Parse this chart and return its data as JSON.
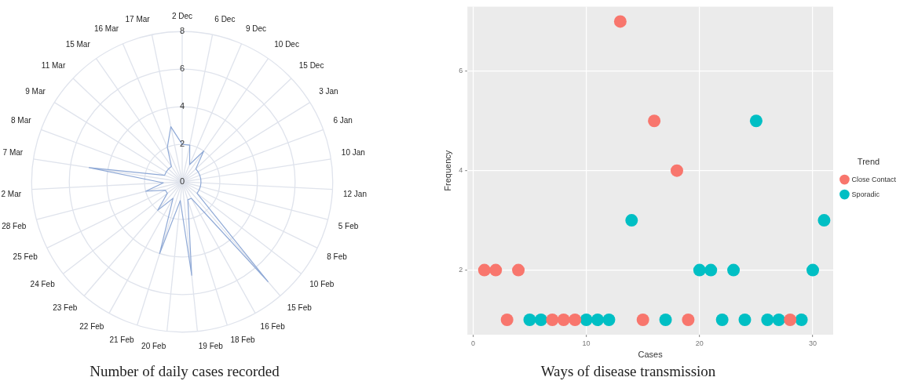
{
  "chart_data": [
    {
      "type": "radar",
      "title": "Number of daily cases recorded",
      "categories": [
        "2 Dec",
        "6 Dec",
        "9 Dec",
        "10 Dec",
        "15 Dec",
        "3 Jan",
        "6 Jan",
        "10 Jan",
        "12 Jan",
        "5 Feb",
        "8 Feb",
        "10 Feb",
        "15 Feb",
        "16 Feb",
        "18 Feb",
        "19 Feb",
        "20 Feb",
        "21 Feb",
        "22 Feb",
        "23 Feb",
        "24 Feb",
        "25 Feb",
        "28 Feb",
        "2 Mar",
        "7 Mar",
        "8 Mar",
        "9 Mar",
        "11 Mar",
        "15 Mar",
        "16 Mar",
        "17 Mar"
      ],
      "series": [
        {
          "color": "#8fa9d6",
          "values": [
            2,
            2,
            1,
            2,
            1,
            1,
            1,
            1,
            1,
            1,
            1,
            1,
            7,
            1,
            1,
            5,
            1,
            4,
            1,
            2,
            1,
            1,
            2,
            1,
            5,
            1,
            1,
            1,
            1,
            2,
            3
          ]
        }
      ],
      "ylim": [
        0,
        8
      ],
      "yticks": [
        0,
        2,
        4,
        6,
        8
      ],
      "grid": true,
      "marker": "none"
    },
    {
      "type": "scatter",
      "title": "Ways of disease transmission",
      "xlabel": "Cases",
      "ylabel": "Frequency",
      "legend_title": "Trend",
      "series": [
        {
          "name": "Close Contact",
          "color": "#f8766d",
          "x": [
            1,
            2,
            4,
            3,
            7,
            8,
            9,
            13,
            15,
            16,
            18,
            19,
            28
          ],
          "values": [
            2,
            2,
            2,
            1,
            1,
            1,
            1,
            7,
            1,
            5,
            4,
            1,
            1
          ]
        },
        {
          "name": "Sporadic",
          "color": "#00bfc4",
          "x": [
            5,
            6,
            10,
            11,
            12,
            14,
            17,
            20,
            21,
            22,
            23,
            24,
            25,
            26,
            27,
            29,
            30,
            31
          ],
          "values": [
            1,
            1,
            1,
            1,
            1,
            3,
            1,
            2,
            2,
            1,
            2,
            1,
            5,
            1,
            1,
            1,
            2,
            3
          ]
        }
      ],
      "xlim": [
        -0.5,
        31.8
      ],
      "xticks": [
        0,
        10,
        20,
        30
      ],
      "ylim": [
        0.7,
        7.3
      ],
      "yticks": [
        2,
        4,
        6
      ],
      "grid": true,
      "legend": "right",
      "marker": "circle"
    }
  ]
}
